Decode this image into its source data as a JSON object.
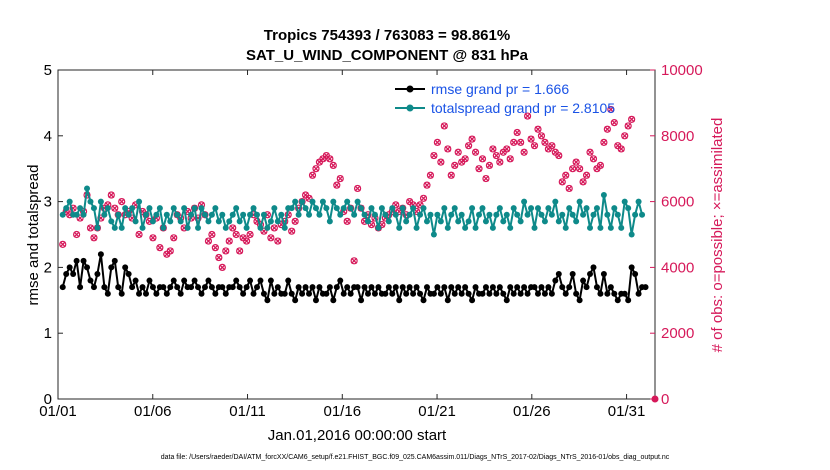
{
  "chart_data": {
    "type": "line",
    "title_line1": "Tropics 754393 / 763083 = 98.861%",
    "title_line2": "SAT_U_WIND_COMPONENT @ 831 hPa",
    "xlabel": "Jan.01,2016 00:00:00 start",
    "ylabel_left": "rmse and totalspread",
    "ylabel_right": "# of obs: o=possible; ×=assimilated",
    "xlim": [
      0,
      31.5
    ],
    "ylim_left": [
      0,
      5
    ],
    "ylim_right": [
      0,
      10000
    ],
    "x_ticks": [
      0,
      5,
      10,
      15,
      20,
      25,
      30
    ],
    "x_tick_labels": [
      "01/01",
      "01/06",
      "01/11",
      "01/16",
      "01/21",
      "01/26",
      "01/31"
    ],
    "y_left_ticks": [
      "0",
      "1",
      "2",
      "3",
      "4",
      "5"
    ],
    "y_right_ticks": [
      "0",
      "2000",
      "4000",
      "6000",
      "8000",
      "10000"
    ],
    "colors": {
      "rmse": "#000000",
      "spread": "#0e8a8a",
      "obs": "#d6195a",
      "legend_text": "#1a53e6",
      "right_axis": "#d6195a"
    },
    "legend": [
      {
        "name": "rmse grand pr = 1.666"
      },
      {
        "name": "totalspread grand pr = 2.8105"
      }
    ],
    "series": [
      {
        "name": "rmse",
        "values": [
          1.7,
          1.9,
          2.0,
          1.9,
          2.1,
          1.7,
          2.1,
          2.0,
          1.8,
          1.7,
          1.9,
          2.2,
          1.7,
          1.6,
          2.0,
          2.1,
          1.7,
          1.6,
          2.0,
          1.9,
          1.7,
          1.8,
          1.6,
          1.7,
          1.6,
          1.8,
          1.7,
          1.6,
          1.7,
          1.7,
          1.6,
          1.7,
          1.8,
          1.7,
          1.6,
          1.8,
          1.7,
          1.7,
          1.8,
          1.7,
          1.6,
          1.7,
          1.8,
          1.7,
          1.6,
          1.7,
          1.7,
          1.6,
          1.7,
          1.7,
          1.8,
          1.7,
          1.6,
          1.7,
          1.8,
          1.6,
          1.7,
          1.8,
          1.6,
          1.5,
          1.8,
          1.6,
          1.7,
          1.6,
          1.6,
          1.8,
          1.6,
          1.5,
          1.7,
          1.6,
          1.7,
          1.6,
          1.7,
          1.5,
          1.7,
          1.6,
          1.6,
          1.7,
          1.5,
          1.7,
          1.8,
          1.6,
          1.7,
          1.6,
          1.7,
          1.7,
          1.5,
          1.7,
          1.6,
          1.7,
          1.6,
          1.7,
          1.6,
          1.6,
          1.7,
          1.6,
          1.7,
          1.5,
          1.7,
          1.6,
          1.7,
          1.6,
          1.7,
          1.6,
          1.5,
          1.7,
          1.6,
          1.6,
          1.7,
          1.6,
          1.7,
          1.5,
          1.7,
          1.6,
          1.7,
          1.6,
          1.7,
          1.6,
          1.5,
          1.7,
          1.6,
          1.6,
          1.7,
          1.6,
          1.7,
          1.6,
          1.7,
          1.6,
          1.5,
          1.7,
          1.6,
          1.7,
          1.6,
          1.7,
          1.6,
          1.7,
          1.7,
          1.6,
          1.7,
          1.6,
          1.7,
          1.6,
          1.8,
          1.9,
          1.7,
          1.6,
          1.7,
          1.9,
          1.6,
          1.5,
          1.8,
          1.7,
          1.9,
          2.0,
          1.7,
          1.6,
          1.9,
          1.6,
          1.7,
          1.6,
          1.5,
          1.6,
          1.6,
          1.5,
          2.0,
          1.9,
          1.6,
          1.7,
          1.7
        ]
      },
      {
        "name": "totalspread",
        "values": [
          2.8,
          2.9,
          3.0,
          2.8,
          2.8,
          2.9,
          2.8,
          3.2,
          3.0,
          2.9,
          2.6,
          3.0,
          2.8,
          2.9,
          2.7,
          2.6,
          2.8,
          2.6,
          2.9,
          2.8,
          2.9,
          2.7,
          3.0,
          2.6,
          2.8,
          2.9,
          2.7,
          2.8,
          2.9,
          2.6,
          2.8,
          2.7,
          2.9,
          2.8,
          2.7,
          2.9,
          2.6,
          2.8,
          2.9,
          2.6,
          2.9,
          2.8,
          2.7,
          2.8,
          2.9,
          2.7,
          2.8,
          2.6,
          2.7,
          2.8,
          2.9,
          2.7,
          2.8,
          2.6,
          2.8,
          2.9,
          2.8,
          2.6,
          2.8,
          2.6,
          2.7,
          2.9,
          2.7,
          2.8,
          2.6,
          2.9,
          2.9,
          3.0,
          2.8,
          3.0,
          2.9,
          2.8,
          3.0,
          2.9,
          2.8,
          3.0,
          2.9,
          2.7,
          3.0,
          2.9,
          2.8,
          2.9,
          3.0,
          2.9,
          2.8,
          3.0,
          2.9,
          2.8,
          2.7,
          2.9,
          2.8,
          2.6,
          2.9,
          2.8,
          2.7,
          2.9,
          2.8,
          2.6,
          2.9,
          2.7,
          2.8,
          2.9,
          2.6,
          2.8,
          2.9,
          2.7,
          2.8,
          2.5,
          2.8,
          2.7,
          2.9,
          2.6,
          2.8,
          2.9,
          2.7,
          2.8,
          2.6,
          2.7,
          2.9,
          2.6,
          2.8,
          2.9,
          2.7,
          2.8,
          2.6,
          2.8,
          2.9,
          2.7,
          2.8,
          2.6,
          2.9,
          2.8,
          2.7,
          3.0,
          2.8,
          2.9,
          2.6,
          2.9,
          2.8,
          2.7,
          2.9,
          2.8,
          3.0,
          2.7,
          2.8,
          2.6,
          2.9,
          2.8,
          2.7,
          3.0,
          2.8,
          2.9,
          2.6,
          2.8,
          2.9,
          2.6,
          3.1,
          2.8,
          2.6,
          2.9,
          2.8,
          2.6,
          3.0,
          2.9,
          2.5,
          2.8,
          3.0,
          2.8
        ]
      },
      {
        "name": "obs_possible",
        "values": [
          4700,
          5700,
          5600,
          5800,
          5000,
          5500,
          5700,
          6200,
          5200,
          4900,
          5200,
          5500,
          5800,
          5900,
          6200,
          5800,
          5600,
          6000,
          5600,
          5700,
          5500,
          5900,
          5000,
          5700,
          5600,
          5400,
          4900,
          5500,
          4600,
          5200,
          4400,
          4500,
          4900,
          5600,
          5500,
          5200,
          5700,
          5500,
          5800,
          5500,
          5900,
          5600,
          4800,
          5000,
          4600,
          4300,
          4000,
          4500,
          4800,
          5200,
          5000,
          4500,
          4900,
          4800,
          5000,
          5600,
          5400,
          5300,
          5100,
          5600,
          4900,
          5200,
          4800,
          5300,
          5400,
          5600,
          5100,
          5400,
          5800,
          6000,
          6200,
          6100,
          6800,
          7000,
          7200,
          7300,
          7400,
          7300,
          7100,
          6500,
          6700,
          5700,
          5400,
          5800,
          4200,
          6400,
          5800,
          5400,
          5600,
          5300,
          5500,
          5200,
          5300,
          5500,
          5600,
          5700,
          5900,
          5700,
          5800,
          5600,
          6000,
          5900,
          5700,
          5900,
          6100,
          6500,
          6800,
          7400,
          7800,
          7200,
          8300,
          7600,
          6800,
          7100,
          7500,
          7200,
          7300,
          7700,
          7900,
          7500,
          7000,
          7300,
          6700,
          7100,
          7600,
          7400,
          7200,
          7500,
          7600,
          7300,
          7800,
          8100,
          7800,
          7500,
          8600,
          7900,
          7700,
          8200,
          8000,
          7800,
          7600,
          7700,
          7500,
          7400,
          6600,
          6800,
          6400,
          7000,
          7200,
          7000,
          6600,
          6800,
          7500,
          7300,
          7000,
          7100,
          7800,
          8200,
          8800,
          8400,
          7700,
          7600,
          8000,
          8300,
          8500
        ]
      },
      {
        "name": "obs_assimilated",
        "values": [
          4700,
          5700,
          5600,
          5800,
          5000,
          5500,
          5700,
          6200,
          5200,
          4900,
          5200,
          5500,
          5800,
          5900,
          6200,
          5800,
          5600,
          6000,
          5600,
          5700,
          5500,
          5900,
          5000,
          5700,
          5600,
          5400,
          4900,
          5500,
          4600,
          5200,
          4400,
          4500,
          4900,
          5600,
          5500,
          5200,
          5700,
          5500,
          5800,
          5500,
          5900,
          5600,
          4800,
          5000,
          4600,
          4300,
          4000,
          4500,
          4800,
          5200,
          5000,
          4500,
          4900,
          4800,
          5000,
          5600,
          5400,
          5300,
          5100,
          5600,
          4900,
          5200,
          4800,
          5300,
          5400,
          5600,
          5100,
          5400,
          5800,
          6000,
          6200,
          6100,
          6800,
          7000,
          7200,
          7300,
          7400,
          7300,
          7100,
          6500,
          6700,
          5700,
          5400,
          5800,
          4200,
          6400,
          5800,
          5400,
          5600,
          5300,
          5500,
          5200,
          5300,
          5500,
          5600,
          5700,
          5900,
          5700,
          5800,
          5600,
          6000,
          5900,
          5700,
          5900,
          6100,
          6500,
          6800,
          7400,
          7800,
          7200,
          8300,
          7600,
          6800,
          7100,
          7500,
          7200,
          7300,
          7700,
          7900,
          7500,
          7000,
          7300,
          6700,
          7100,
          7600,
          7400,
          7200,
          7500,
          7600,
          7300,
          7800,
          8100,
          7800,
          7500,
          8600,
          7900,
          7700,
          8200,
          8000,
          7800,
          7600,
          7700,
          7500,
          7400,
          6600,
          6800,
          6400,
          7000,
          7200,
          7000,
          6600,
          6800,
          7500,
          7300,
          7000,
          7100,
          7800,
          8200,
          8800,
          8400,
          7700,
          7600,
          8000,
          8300,
          8500
        ]
      }
    ],
    "last_point_obs_value": 0
  },
  "footer": {
    "text": "data file: /Users/raeder/DAI/ATM_forcXX/CAM6_setup/f.e21.FHIST_BGC.f09_025.CAM6assim.011/Diags_NTrS_2017-02/Diags_NTrS_2016-01/obs_diag_output.nc"
  }
}
